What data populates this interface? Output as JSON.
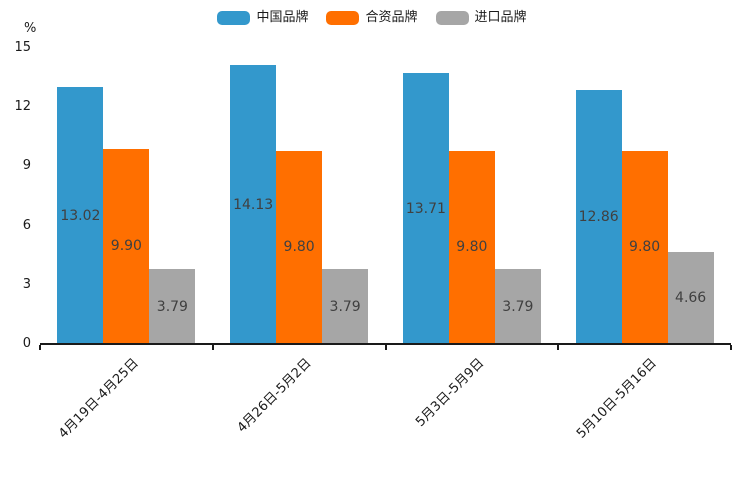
{
  "chart_data": {
    "type": "bar",
    "title": "",
    "unit_label": "%",
    "categories": [
      "4月19日-4月25日",
      "4月26日-5月2日",
      "5月3日-5月9日",
      "5月10日-5月16日"
    ],
    "series": [
      {
        "name": "中国品牌",
        "color": "#3398cc",
        "values": [
          13.02,
          14.13,
          13.71,
          12.86
        ]
      },
      {
        "name": "合资品牌",
        "color": "#ff6f00",
        "values": [
          9.9,
          9.8,
          9.8,
          9.8
        ]
      },
      {
        "name": "进口品牌",
        "color": "#a6a6a6",
        "values": [
          3.79,
          3.79,
          3.79,
          4.66
        ]
      }
    ],
    "value_labels": [
      [
        "13.02",
        "9.90",
        "3.79"
      ],
      [
        "14.13",
        "9.80",
        "3.79"
      ],
      [
        "13.71",
        "9.80",
        "3.79"
      ],
      [
        "12.86",
        "9.80",
        "4.66"
      ]
    ],
    "ylim": [
      0,
      15
    ],
    "yticks": [
      0,
      3,
      6,
      9,
      12,
      15
    ],
    "grid": false,
    "legend_position": "top",
    "colors": {
      "background": "#ffffff",
      "axis": "#1a1a1a",
      "tick_text": "#1a1a1a",
      "value_text": "#404040"
    }
  }
}
